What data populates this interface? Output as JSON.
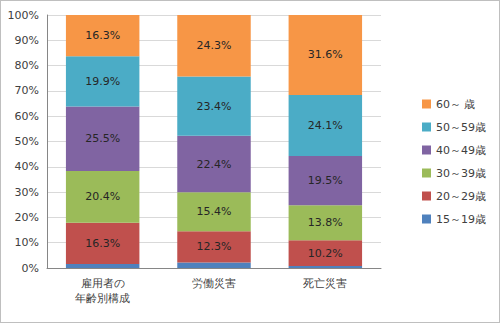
{
  "chart_data": {
    "type": "bar",
    "stacked": true,
    "grid": true,
    "legend": "right",
    "data_labels": true,
    "categories": [
      "雇用者の\n年齢別構成",
      "労働災害",
      "死亡災害"
    ],
    "series": [
      {
        "name": "15～19歳",
        "color": "#4f81bd",
        "values": [
          1.6,
          2.2,
          0.8
        ],
        "value_labels": [
          null,
          null,
          null
        ]
      },
      {
        "name": "20～29歳",
        "color": "#c0504d",
        "values": [
          16.3,
          12.3,
          10.2
        ],
        "value_labels": [
          "16.3%",
          "12.3%",
          "10.2%"
        ]
      },
      {
        "name": "30～39歳",
        "color": "#9bbb59",
        "values": [
          20.4,
          15.4,
          13.8
        ],
        "value_labels": [
          "20.4%",
          "15.4%",
          "13.8%"
        ]
      },
      {
        "name": "40～49歳",
        "color": "#8064a2",
        "values": [
          25.5,
          22.4,
          19.5
        ],
        "value_labels": [
          "25.5%",
          "22.4%",
          "19.5%"
        ]
      },
      {
        "name": "50～59歳",
        "color": "#4bacc6",
        "values": [
          19.9,
          23.4,
          24.1
        ],
        "value_labels": [
          "19.9%",
          "23.4%",
          "24.1%"
        ]
      },
      {
        "name": "60～ 歳",
        "color": "#f79646",
        "values": [
          16.3,
          24.3,
          31.6
        ],
        "value_labels": [
          "16.3%",
          "24.3%",
          "31.6%"
        ]
      }
    ],
    "ylim": [
      0,
      100
    ],
    "yticks": [
      {
        "value": 0,
        "label": "0%"
      },
      {
        "value": 10,
        "label": "10%"
      },
      {
        "value": 20,
        "label": "20%"
      },
      {
        "value": 30,
        "label": "30%"
      },
      {
        "value": 40,
        "label": "40%"
      },
      {
        "value": 50,
        "label": "50%"
      },
      {
        "value": 60,
        "label": "60%"
      },
      {
        "value": 70,
        "label": "70%"
      },
      {
        "value": 80,
        "label": "80%"
      },
      {
        "value": 90,
        "label": "90%"
      },
      {
        "value": 100,
        "label": "100%"
      }
    ]
  }
}
